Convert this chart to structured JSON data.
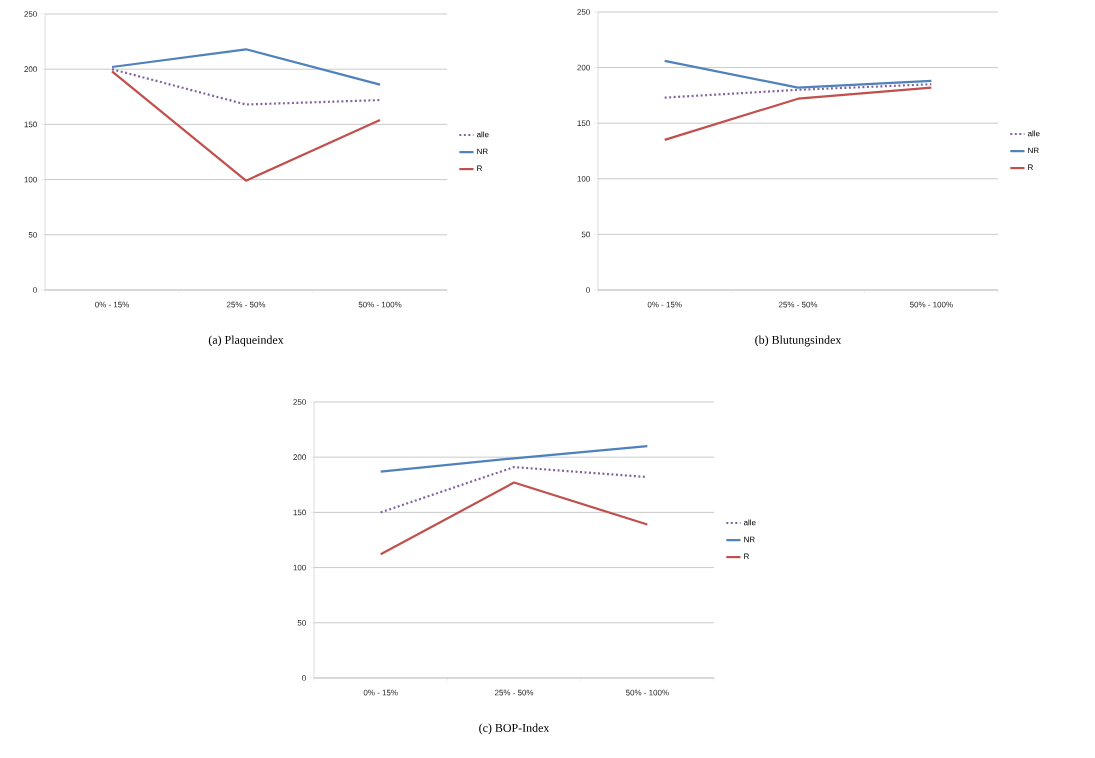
{
  "chart_data": [
    {
      "type": "line",
      "title": "(a)  Plaqueindex",
      "categories": [
        "0% - 15%",
        "25% - 50%",
        "50% - 100%"
      ],
      "ylim": [
        0,
        250
      ],
      "yticks": [
        0,
        50,
        100,
        150,
        200,
        250
      ],
      "grid": "y",
      "legend": "right",
      "series": [
        {
          "name": "alle",
          "color": "#8064a2",
          "line_style": "dotted",
          "values": [
            200,
            168,
            172
          ]
        },
        {
          "name": "NR",
          "color": "#4f81bd",
          "line_style": "solid",
          "values": [
            202,
            218,
            186
          ]
        },
        {
          "name": "R",
          "color": "#c0504d",
          "line_style": "solid",
          "values": [
            198,
            99,
            154
          ]
        }
      ]
    },
    {
      "type": "line",
      "title": "(b)  Blutungsindex",
      "categories": [
        "0% - 15%",
        "25% - 50%",
        "50% - 100%"
      ],
      "ylim": [
        0,
        250
      ],
      "yticks": [
        0,
        50,
        100,
        150,
        200,
        250
      ],
      "grid": "y",
      "legend": "right",
      "series": [
        {
          "name": "alle",
          "color": "#8064a2",
          "line_style": "dotted",
          "values": [
            173,
            180,
            185
          ]
        },
        {
          "name": "NR",
          "color": "#4f81bd",
          "line_style": "solid",
          "values": [
            206,
            182,
            188
          ]
        },
        {
          "name": "R",
          "color": "#c0504d",
          "line_style": "solid",
          "values": [
            135,
            172,
            182
          ]
        }
      ]
    },
    {
      "type": "line",
      "title": "(c)  BOP-Index",
      "categories": [
        "0% - 15%",
        "25% - 50%",
        "50% - 100%"
      ],
      "ylim": [
        0,
        250
      ],
      "yticks": [
        0,
        50,
        100,
        150,
        200,
        250
      ],
      "grid": "y",
      "legend": "right",
      "series": [
        {
          "name": "alle",
          "color": "#8064a2",
          "line_style": "dotted",
          "values": [
            150,
            191,
            182
          ]
        },
        {
          "name": "NR",
          "color": "#4f81bd",
          "line_style": "solid",
          "values": [
            187,
            199,
            210
          ]
        },
        {
          "name": "R",
          "color": "#c0504d",
          "line_style": "solid",
          "values": [
            112,
            177,
            139
          ]
        }
      ]
    }
  ]
}
